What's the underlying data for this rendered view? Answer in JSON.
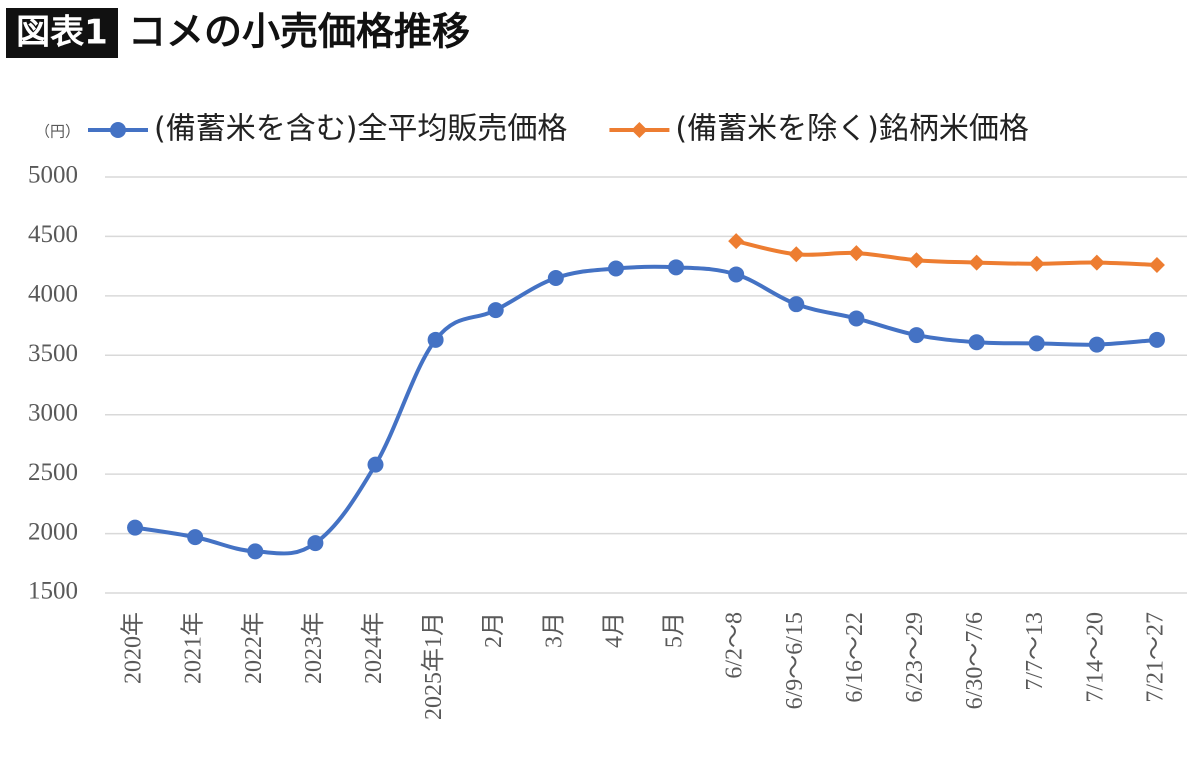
{
  "chart_data": {
    "type": "line",
    "figure_label": "図表1",
    "title": "コメの小売価格推移",
    "y_unit_label": "（円）",
    "categories": [
      "2020年",
      "2021年",
      "2022年",
      "2023年",
      "2024年",
      "2025年1月",
      "2月",
      "3月",
      "4月",
      "5月",
      "6/2～8",
      "6/9～6/15",
      "6/16～22",
      "6/23～29",
      "6/30～7/6",
      "7/7～13",
      "7/14～20",
      "7/21～27"
    ],
    "series": [
      {
        "name": "(備蓄米を含む)全平均販売価格",
        "color": "#4472c4",
        "marker": "circle",
        "values": [
          2050,
          1970,
          1850,
          1920,
          2580,
          3630,
          3880,
          4150,
          4230,
          4240,
          4180,
          3930,
          3810,
          3670,
          3610,
          3600,
          3590,
          3630
        ]
      },
      {
        "name": "(備蓄米を除く)銘柄米価格",
        "color": "#ed7d31",
        "marker": "diamond",
        "values": [
          null,
          null,
          null,
          null,
          null,
          null,
          null,
          null,
          null,
          null,
          4460,
          4350,
          4360,
          4300,
          4280,
          4270,
          4280,
          4260
        ]
      }
    ],
    "ylim": [
      1500,
      5000
    ],
    "yticks": [
      1500,
      2000,
      2500,
      3000,
      3500,
      4000,
      4500,
      5000
    ],
    "grid": true
  }
}
